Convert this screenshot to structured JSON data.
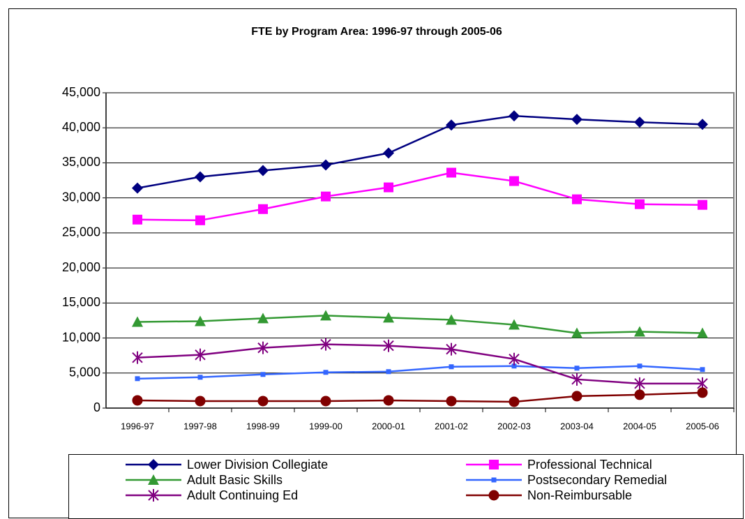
{
  "chart_data": {
    "type": "line",
    "title": "FTE by Program Area: 1996-97 through 2005-06",
    "categories": [
      "1996-97",
      "1997-98",
      "1998-99",
      "1999-00",
      "2000-01",
      "2001-02",
      "2002-03",
      "2003-04",
      "2004-05",
      "2005-06"
    ],
    "series": [
      {
        "name": "Lower Division Collegiate",
        "color": "#000080",
        "marker": "diamond",
        "values": [
          31400,
          33000,
          33900,
          34700,
          36400,
          40400,
          41700,
          41200,
          40800,
          40500
        ]
      },
      {
        "name": "Professional Technical",
        "color": "#ff00ff",
        "marker": "square",
        "values": [
          26900,
          26800,
          28400,
          30200,
          31500,
          33600,
          32400,
          29800,
          29100,
          29000
        ]
      },
      {
        "name": "Adult Basic Skills",
        "color": "#339933",
        "marker": "triangle",
        "values": [
          12300,
          12400,
          12800,
          13200,
          12900,
          12600,
          11900,
          10700,
          10900,
          10700
        ]
      },
      {
        "name": "Postsecondary Remedial",
        "color": "#3366ff",
        "marker": "smallsquare",
        "values": [
          4200,
          4400,
          4800,
          5100,
          5200,
          5900,
          6000,
          5700,
          6000,
          5500
        ]
      },
      {
        "name": "Adult Continuing Ed",
        "color": "#800080",
        "marker": "asterisk",
        "values": [
          7200,
          7600,
          8600,
          9100,
          8900,
          8400,
          7000,
          4100,
          3500,
          3500
        ]
      },
      {
        "name": "Non-Reimbursable",
        "color": "#800000",
        "marker": "circle",
        "values": [
          1100,
          1000,
          1000,
          1000,
          1100,
          1000,
          900,
          1700,
          1900,
          2200
        ]
      }
    ],
    "ylim": [
      0,
      45000
    ],
    "yticks": [
      0,
      {
        "value": 5000,
        "label": "5,000"
      },
      {
        "value": 10000,
        "label": "10,000"
      },
      {
        "value": 15000,
        "label": "15,000"
      },
      {
        "value": 20000,
        "label": "20,000"
      },
      {
        "value": 25000,
        "label": "25,000"
      },
      {
        "value": 30000,
        "label": "30,000"
      },
      {
        "value": 35000,
        "label": "35,000"
      },
      {
        "value": 40000,
        "label": "40,000"
      },
      {
        "value": 45000,
        "label": "45,000"
      }
    ],
    "grid": true,
    "legend": "bottom"
  }
}
